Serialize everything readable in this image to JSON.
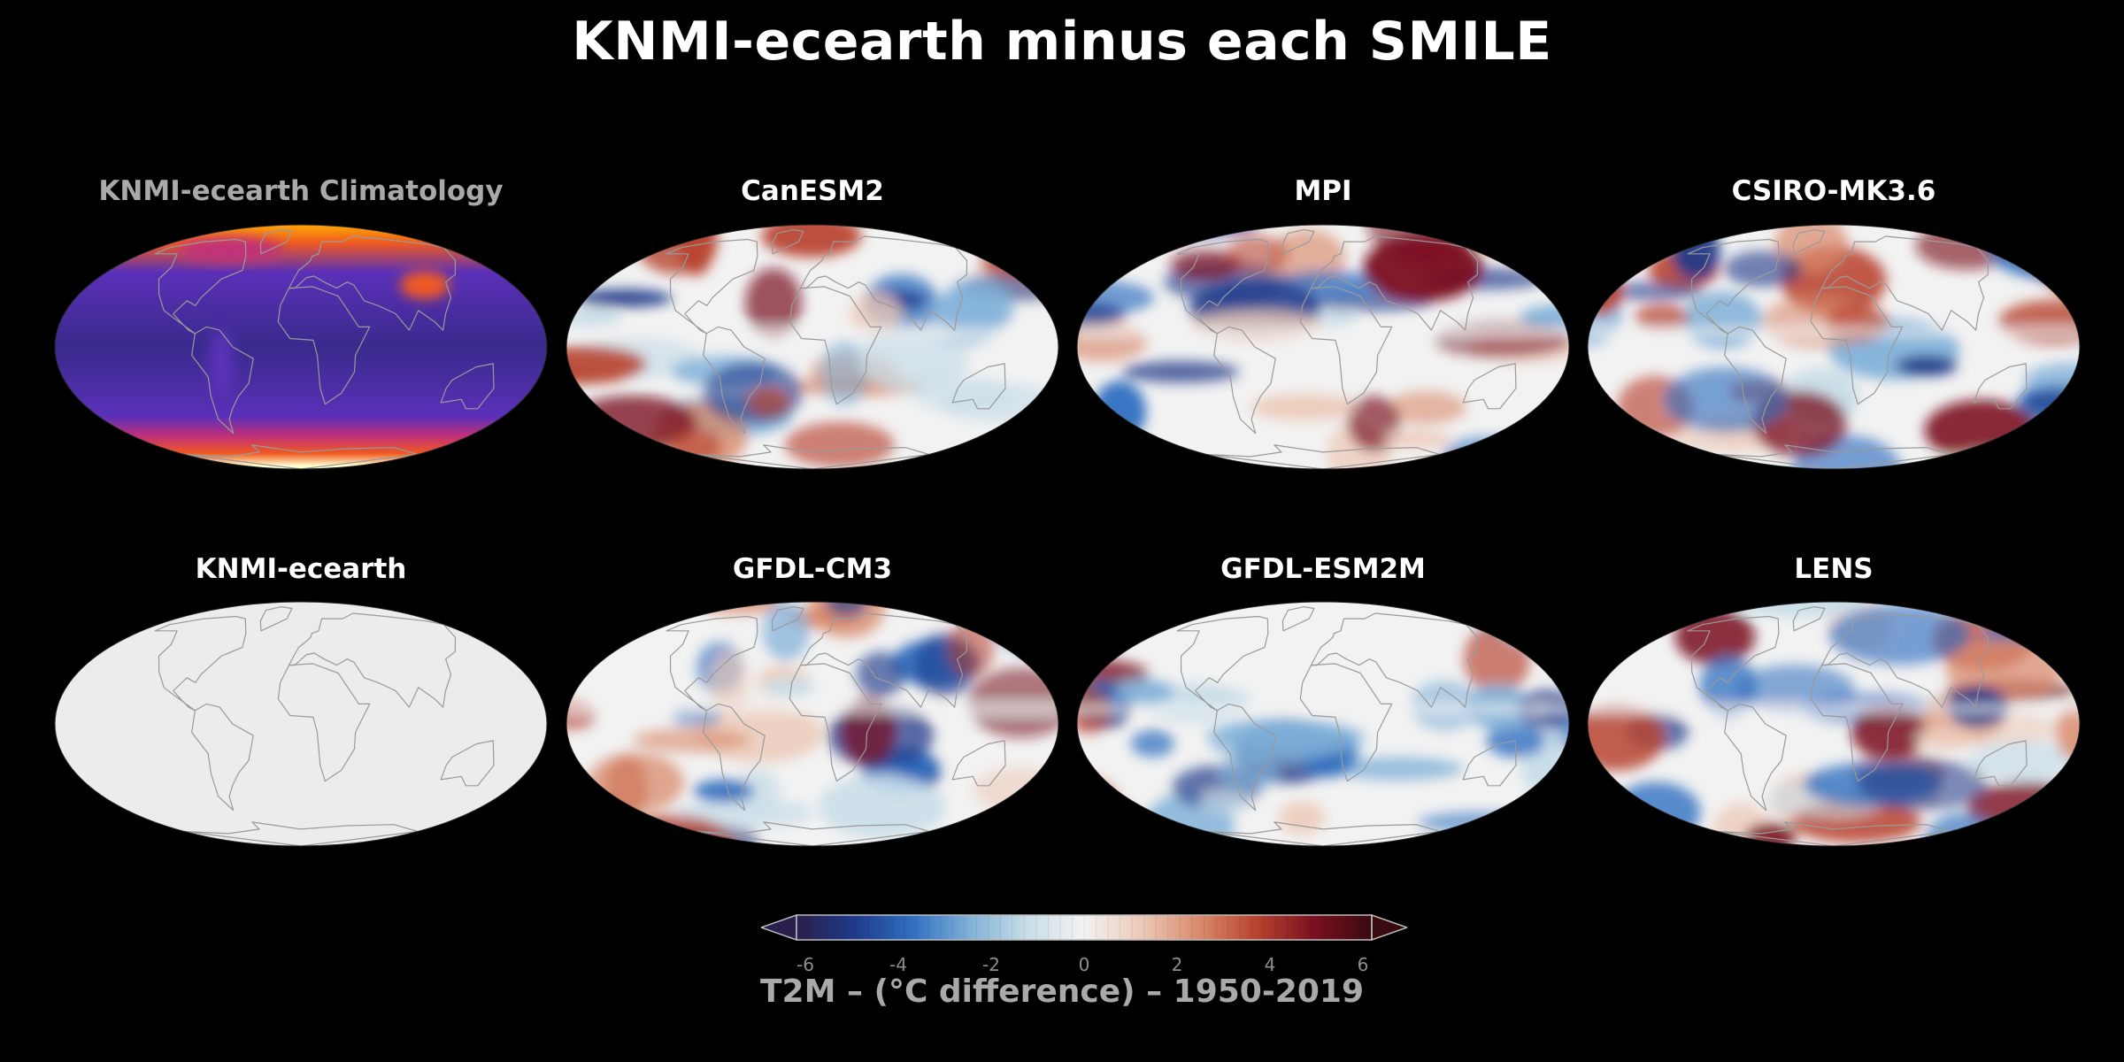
{
  "title": "KNMI-ecearth minus each SMILE",
  "panels": [
    {
      "label": "KNMI-ecearth Climatology",
      "kind": "climatology",
      "muted": true
    },
    {
      "label": "CanESM2",
      "kind": "diff"
    },
    {
      "label": "MPI",
      "kind": "diff"
    },
    {
      "label": "CSIRO-MK3.6",
      "kind": "diff"
    },
    {
      "label": "KNMI-ecearth",
      "kind": "blank"
    },
    {
      "label": "GFDL-CM3",
      "kind": "diff"
    },
    {
      "label": "GFDL-ESM2M",
      "kind": "diff"
    },
    {
      "label": "LENS",
      "kind": "diff"
    }
  ],
  "colorbar": {
    "label": "T2M – (°C difference) – 1950-2019",
    "min": -6,
    "max": 6,
    "ticks": [
      "-6",
      "-4",
      "-2",
      "0",
      "2",
      "4",
      "6"
    ],
    "colors": [
      "#2a1f4a",
      "#1f3a8a",
      "#2f6fc0",
      "#7fb0d8",
      "#c8dde8",
      "#f2f2f2",
      "#ecc9b8",
      "#d98a6c",
      "#b8432f",
      "#7a1020",
      "#3a0a10"
    ],
    "extend": "both"
  },
  "climatology_colors": [
    "#3a2a8c",
    "#5a30b8",
    "#c0307a",
    "#f05a20",
    "#ffb000",
    "#ffffd0"
  ],
  "coastline_color": "#9a9a9a"
}
